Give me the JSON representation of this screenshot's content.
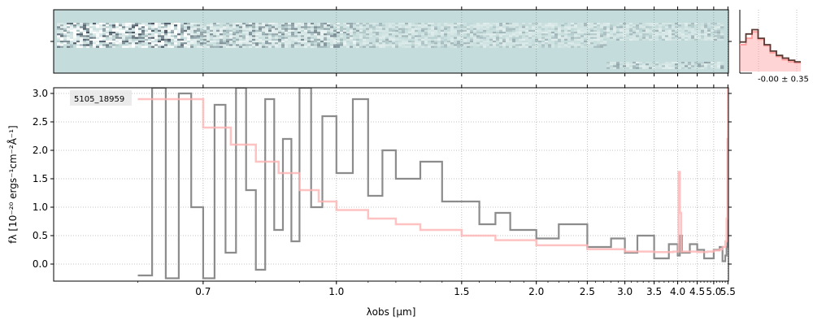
{
  "chart_data": [
    {
      "type": "heatmap",
      "panel": "2d-spectrum",
      "colormap": [
        "#0b0e24",
        "#c4dcdb",
        "#ffffff"
      ],
      "background": "#c4dcdb",
      "grid": true
    },
    {
      "type": "line",
      "panel": "spatial-profile",
      "annotation": "-0.00 ± 0.35",
      "series": [
        {
          "color": "#ff9f9f",
          "values": [
            0.5,
            0.62,
            0.74,
            0.6,
            0.48,
            0.35,
            0.28,
            0.22,
            0.18,
            0.16
          ]
        },
        {
          "color": "#5a3a33",
          "values": [
            0.55,
            0.7,
            0.78,
            0.62,
            0.5,
            0.38,
            0.3,
            0.25,
            0.21,
            0.18
          ]
        }
      ]
    },
    {
      "type": "line",
      "panel": "1d-spectrum",
      "label": "5105_18959",
      "xlabel": "λobs [μm]",
      "ylabel": "fλ [10⁻²⁰ ergs⁻¹cm⁻²Å⁻¹]",
      "ylim": [
        -0.3,
        3.1
      ],
      "yticks": [
        0.0,
        0.5,
        1.0,
        1.5,
        2.0,
        2.5,
        3.0
      ],
      "ytick_labels": [
        "0.0",
        "0.5",
        "1.0",
        "1.5",
        "2.0",
        "2.5",
        "3.0"
      ],
      "xscale": "inverse-sqrt",
      "xlim": [
        0.5,
        5.52
      ],
      "xticks": [
        0.7,
        1.0,
        1.5,
        2.0,
        2.5,
        3.0,
        3.5,
        4.0,
        4.5,
        5.0,
        5.5
      ],
      "xtick_labels": [
        "0.7",
        "1.0",
        "1.5",
        "2.0",
        "2.5",
        "3.0",
        "3.5",
        "4.0",
        "4.5",
        "5.0",
        "5.5"
      ],
      "grid": true,
      "series": [
        {
          "color": "#ffb3b3",
          "role": "model",
          "x": [
            0.6,
            0.7,
            0.75,
            0.8,
            0.85,
            0.9,
            0.95,
            1.0,
            1.1,
            1.2,
            1.3,
            1.5,
            1.7,
            2.0,
            2.5,
            3.0,
            3.5,
            3.9,
            4.02,
            4.05,
            4.08,
            4.5,
            4.8,
            5.0,
            5.2,
            5.3,
            5.4,
            5.45,
            5.48,
            5.5
          ],
          "y": [
            2.9,
            2.4,
            2.1,
            1.8,
            1.6,
            1.3,
            1.1,
            0.95,
            0.8,
            0.7,
            0.6,
            0.5,
            0.42,
            0.33,
            0.26,
            0.22,
            0.21,
            0.22,
            1.62,
            0.9,
            0.22,
            0.21,
            0.22,
            0.24,
            0.26,
            0.3,
            0.4,
            0.8,
            2.2,
            3.1
          ]
        },
        {
          "color": "#8c8c8c",
          "role": "data",
          "x": [
            0.6,
            0.62,
            0.64,
            0.66,
            0.68,
            0.7,
            0.72,
            0.74,
            0.76,
            0.78,
            0.8,
            0.82,
            0.84,
            0.86,
            0.88,
            0.9,
            0.93,
            0.96,
            1.0,
            1.05,
            1.1,
            1.15,
            1.2,
            1.3,
            1.4,
            1.5,
            1.6,
            1.7,
            1.8,
            2.0,
            2.2,
            2.5,
            2.8,
            3.0,
            3.2,
            3.5,
            3.8,
            4.0,
            4.05,
            4.1,
            4.3,
            4.5,
            4.7,
            5.0,
            5.2,
            5.3,
            5.4,
            5.45,
            5.48,
            5.5
          ],
          "y": [
            -0.2,
            3.1,
            -0.25,
            3.0,
            1.0,
            -0.25,
            2.8,
            0.2,
            3.1,
            1.3,
            -0.1,
            2.9,
            0.6,
            2.2,
            0.4,
            3.1,
            1.0,
            2.6,
            1.6,
            2.9,
            1.2,
            2.0,
            1.5,
            1.8,
            1.1,
            1.1,
            0.7,
            0.9,
            0.6,
            0.45,
            0.7,
            0.3,
            0.45,
            0.2,
            0.5,
            0.1,
            0.35,
            0.15,
            0.5,
            0.2,
            0.35,
            0.25,
            0.1,
            0.25,
            0.3,
            0.05,
            0.15,
            0.3,
            0.4,
            2.2
          ]
        }
      ]
    }
  ]
}
